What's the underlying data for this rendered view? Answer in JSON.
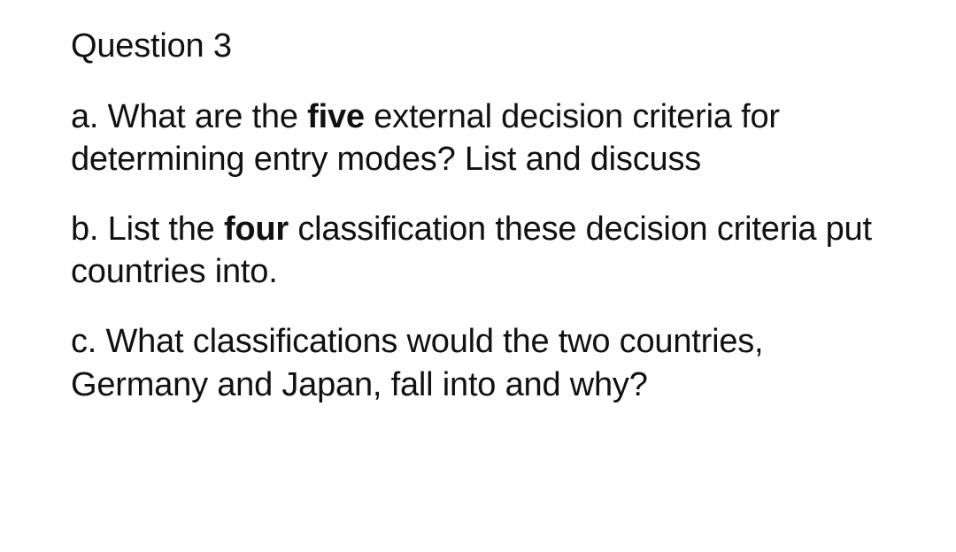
{
  "heading": "Question 3",
  "partA": {
    "prefix": "a. What are the ",
    "bold": "five",
    "suffix": " external decision criteria for determining entry modes? List and discuss"
  },
  "partB": {
    "prefix": "b. List the ",
    "bold": "four",
    "suffix": " classification these decision criteria put countries into."
  },
  "partC": {
    "text": "c. What classifications would the two countries, Germany and Japan, fall into and why?"
  },
  "style": {
    "textColor": "#111111",
    "background": "#ffffff",
    "fontSize": 38,
    "lineHeight": 1.28,
    "boldWeight": 700
  }
}
